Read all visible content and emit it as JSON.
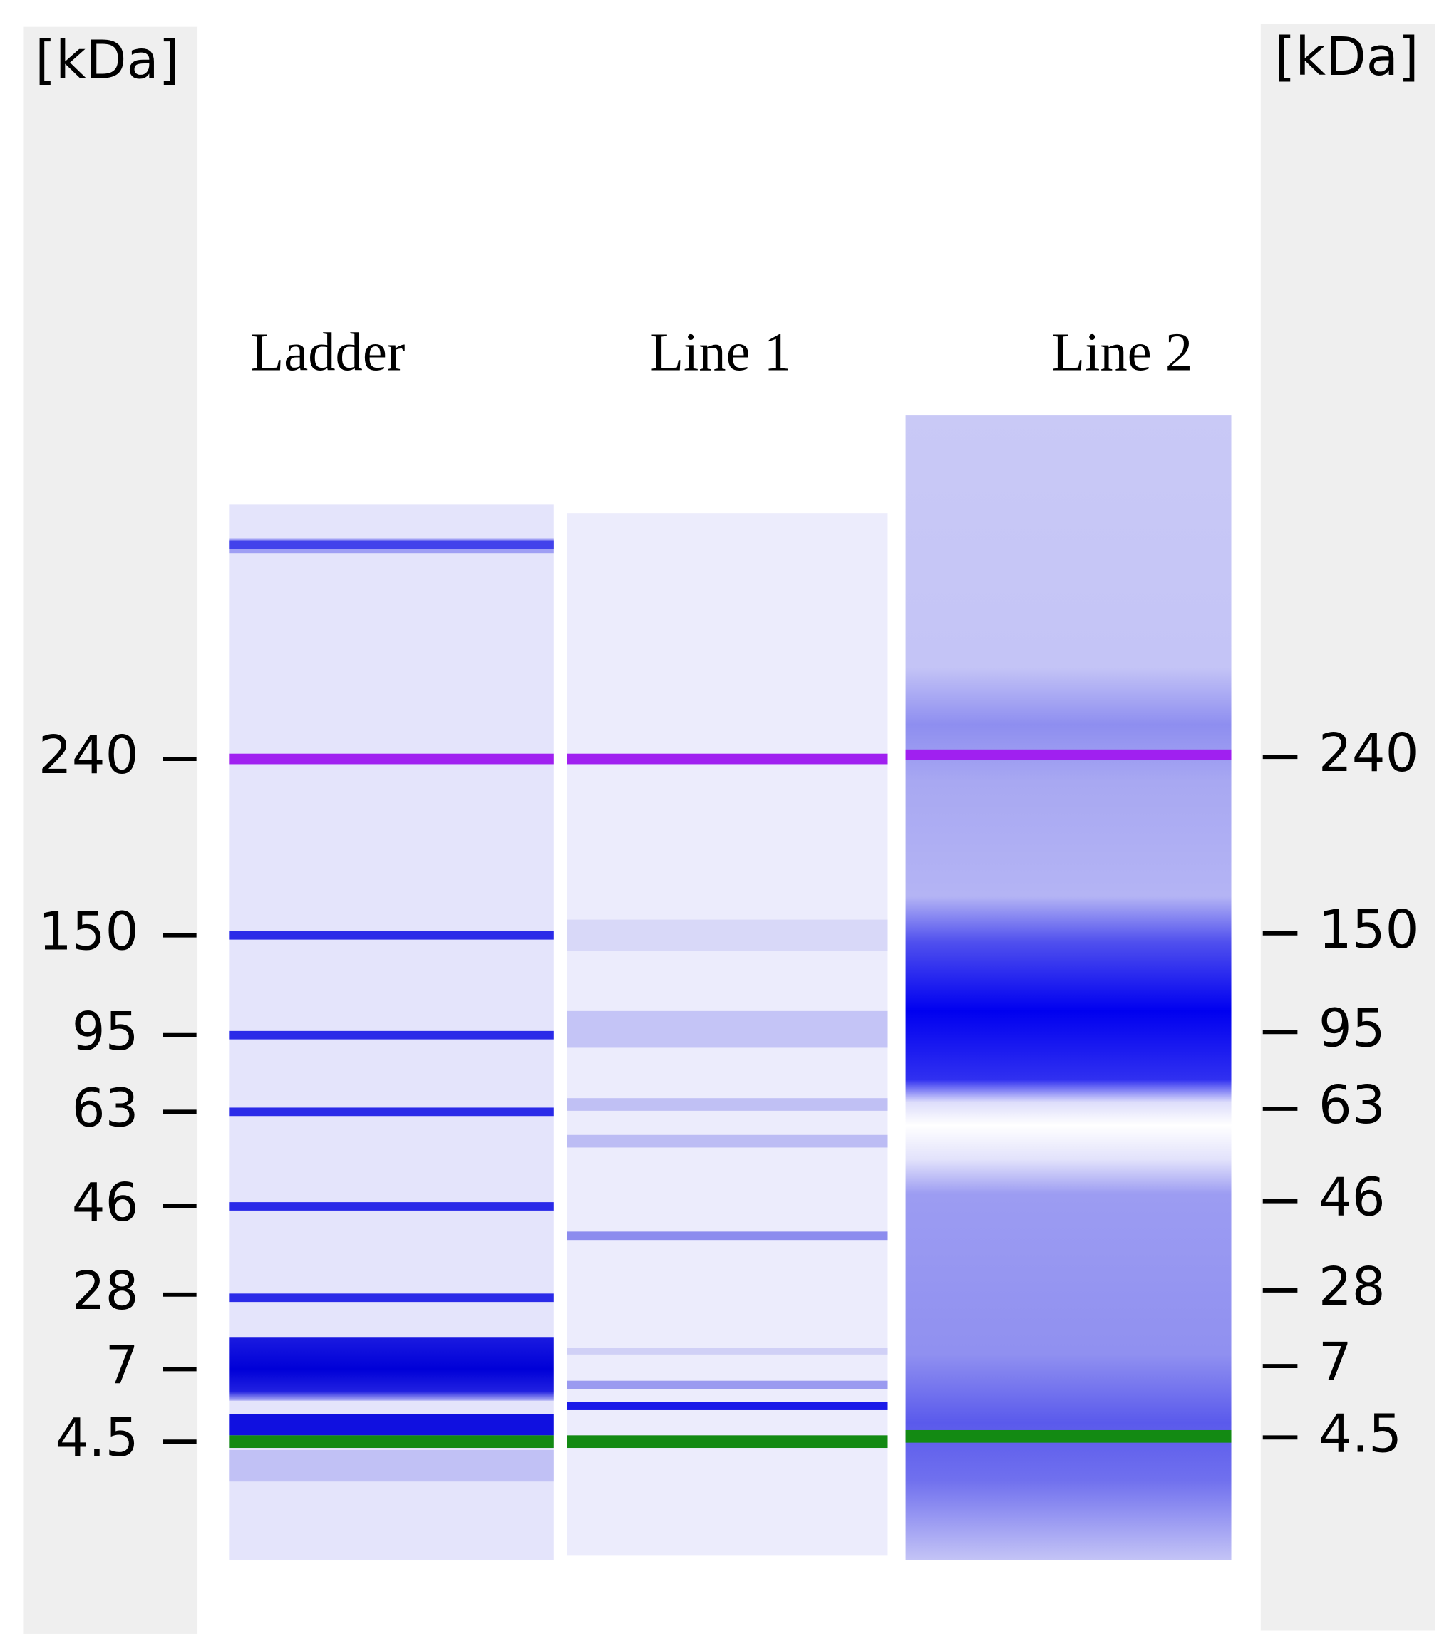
{
  "left_axis": {
    "unit": "[kDa]",
    "ticks": [
      240,
      150,
      95,
      63,
      46,
      28,
      7,
      4.5
    ]
  },
  "right_axis": {
    "unit": "[kDa]",
    "ticks": [
      240,
      150,
      95,
      63,
      46,
      28,
      7,
      4.5
    ]
  },
  "lanes": [
    {
      "label": "Ladder"
    },
    {
      "label": "Line 1"
    },
    {
      "label": "Line 2"
    }
  ]
}
